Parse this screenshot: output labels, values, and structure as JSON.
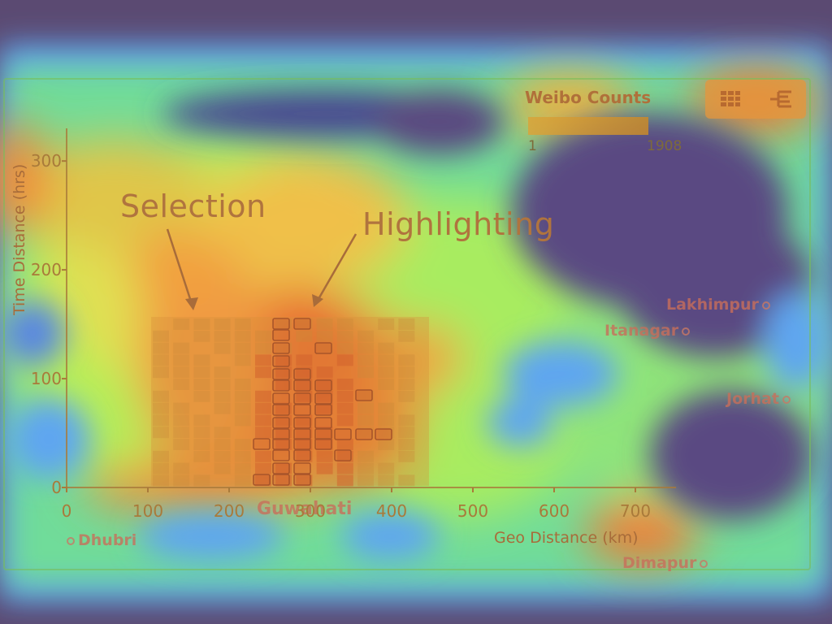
{
  "chart_data": {
    "type": "heatmap",
    "xlabel": "Geo Distance (km)",
    "ylabel": "Time Distance (hrs)",
    "xlim": [
      0,
      750
    ],
    "ylim": [
      0,
      330
    ],
    "x_ticks": [
      "0",
      "100",
      "200",
      "300",
      "400",
      "500",
      "600",
      "700"
    ],
    "y_ticks": [
      "0",
      "100",
      "200",
      "300"
    ],
    "grid": false,
    "annotations": [
      "Selection",
      "Highlighting"
    ]
  },
  "legend": {
    "title": "Weibo Counts",
    "min": "1",
    "max": "1908",
    "colors": [
      "#d9a43a",
      "#c98a2a"
    ]
  },
  "map_labels": {
    "dhubri": "Dhubri",
    "guwahati": "Guwahati",
    "dimapur": "Dimapur",
    "lakhimpur": "Lakhimpur",
    "itanagar": "Itanagar",
    "jorhat": "Jorhat"
  },
  "toolbar": {
    "grid_icon": "grid-icon",
    "tree_icon": "tree-icon"
  },
  "colors": {
    "accent": "#e0903a",
    "axis": "#a97a3a"
  }
}
